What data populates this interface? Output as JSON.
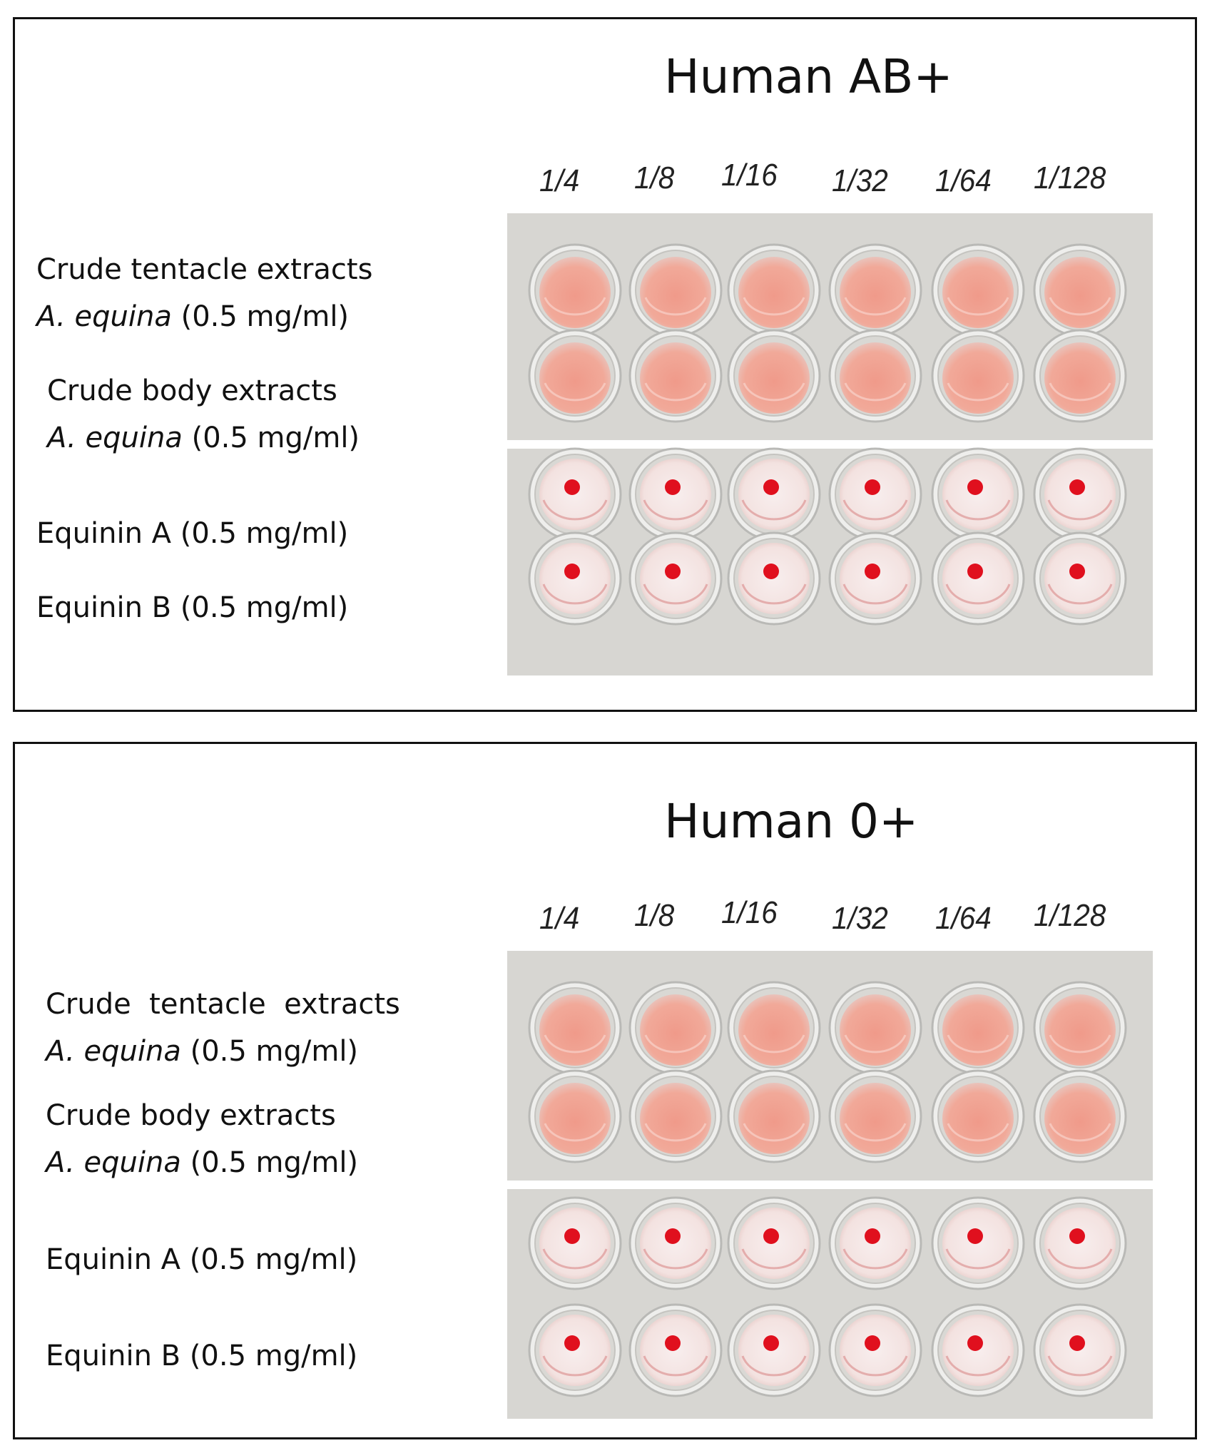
{
  "figure": {
    "panels": [
      {
        "title": "Human AB+",
        "dilutions": [
          "1/4",
          "1/8",
          "1/16",
          "1/32",
          "1/64",
          "1/128"
        ],
        "rows": [
          {
            "line1": "Crude tentacle extracts",
            "species": "A. equina",
            "conc": " (0.5 mg/ml)",
            "well_result": "lysis"
          },
          {
            "line1": "Crude body extracts",
            "species": "A. equina",
            "conc": " (0.5 mg/ml)",
            "well_result": "lysis"
          },
          {
            "line1": "Equinin A (0.5 mg/ml)",
            "well_result": "button"
          },
          {
            "line1": "Equinin B (0.5 mg/ml)",
            "well_result": "button"
          }
        ]
      },
      {
        "title": "Human 0+",
        "dilutions": [
          "1/4",
          "1/8",
          "1/16",
          "1/32",
          "1/64",
          "1/128"
        ],
        "rows": [
          {
            "line1": "Crude  tentacle  extracts",
            "species": "A. equina",
            "conc": " (0.5 mg/ml)",
            "well_result": "lysis"
          },
          {
            "line1": "Crude body extracts",
            "species": "A. equina",
            "conc": " (0.5 mg/ml)",
            "well_result": "lysis"
          },
          {
            "line1": "Equinin A (0.5 mg/ml)",
            "well_result": "button"
          },
          {
            "line1": "Equinin B (0.5 mg/ml)",
            "well_result": "button"
          }
        ]
      }
    ],
    "colors": {
      "lysis_well": "#f1a999",
      "button_dot": "#e0101e",
      "plate_background": "#d7d6d2",
      "clear_well": "#f3e2e0"
    }
  }
}
